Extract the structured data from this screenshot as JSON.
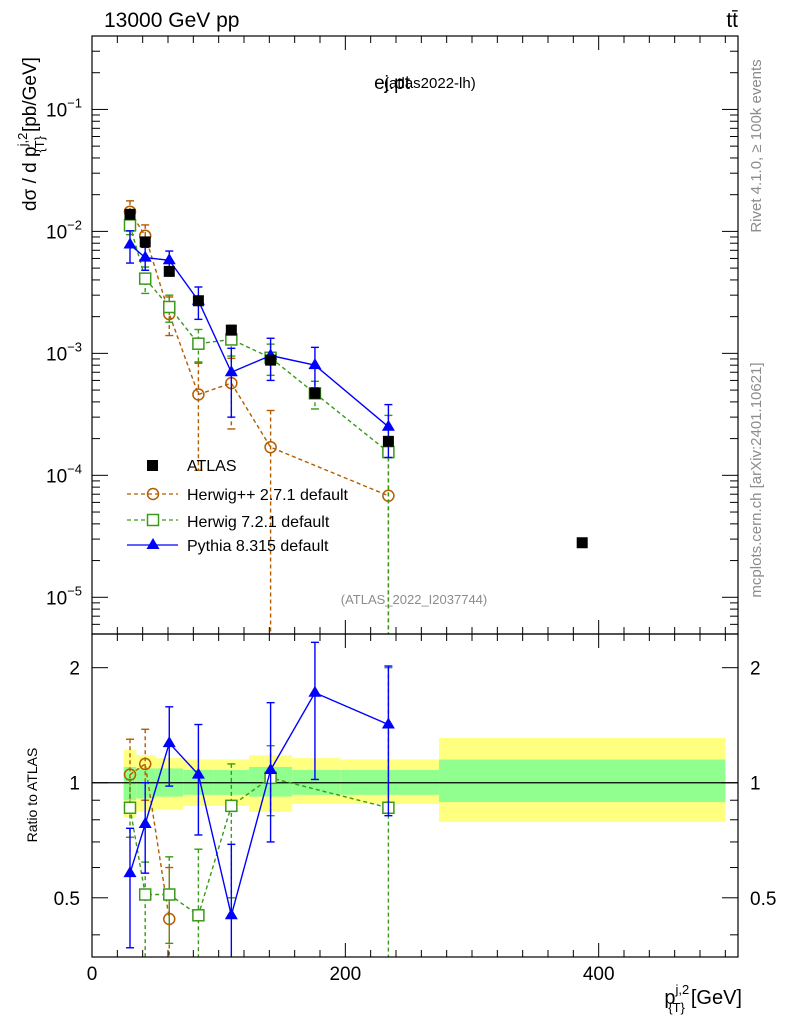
{
  "header": {
    "left": "13000 GeV pp",
    "right": "tt̄"
  },
  "side_labels": {
    "rivet": "Rivet 4.1.0, ≥ 100k events",
    "mcplots": "mcplots.cern.ch [arXiv:2401.10621]"
  },
  "chart_data": {
    "type": "scatter",
    "title": "ej.pt",
    "subtitle": "(atlas2022-lh)",
    "watermark": "(ATLAS_2022_I2037744)",
    "xlabel_main": "p",
    "xlabel_super": "j,2",
    "xlabel_sub": "{T}",
    "xlabel_unit": "[GeV]",
    "ylabel_main": "dσ / d p",
    "ylabel_super": "j,2",
    "ylabel_sub": "{T}",
    "ylabel_unit": "[pb/GeV]",
    "xlim": [
      0,
      510
    ],
    "ylim": [
      5e-06,
      0.4
    ],
    "yscale": "log",
    "x_ticks": [
      0,
      200,
      400
    ],
    "x_tick_labels": [
      "0",
      "200",
      "400"
    ],
    "y_ticks": [
      1e-05,
      0.0001,
      0.001,
      0.01,
      0.1
    ],
    "y_tick_labels": [
      {
        "base": "10",
        "exp": "−5"
      },
      {
        "base": "10",
        "exp": "−4"
      },
      {
        "base": "10",
        "exp": "−3"
      },
      {
        "base": "10",
        "exp": "−2"
      },
      {
        "base": "10",
        "exp": "−1"
      }
    ],
    "series": [
      {
        "name": "ATLAS",
        "marker": "square-filled",
        "color": "#000000",
        "x": [
          30,
          42,
          61,
          84,
          110,
          141,
          176,
          234,
          387
        ],
        "y": [
          0.0138,
          0.0082,
          0.0047,
          0.0027,
          0.00155,
          0.00088,
          0.00047,
          0.00019,
          2.8e-05
        ]
      },
      {
        "name": "Herwig++ 2.7.1 default",
        "marker": "circle-open",
        "color": "#b35c00",
        "line": "dashed",
        "x": [
          30,
          42,
          61,
          84,
          110,
          141,
          234
        ],
        "y": [
          0.0145,
          0.0092,
          0.0021,
          0.00046,
          0.00057,
          0.00017,
          6.8e-05
        ],
        "err_lo": [
          0.0118,
          0.0074,
          0.0014,
          0.00011,
          0.00024,
          1e-06,
          1e-06
        ],
        "err_hi": [
          0.0178,
          0.0113,
          0.0029,
          0.00083,
          0.00091,
          0.00034,
          0.00016
        ]
      },
      {
        "name": "Herwig 7.2.1 default",
        "marker": "square-open",
        "color": "#3a9a1a",
        "line": "dashed",
        "x": [
          30,
          42,
          61,
          84,
          110,
          141,
          176,
          234
        ],
        "y": [
          0.0112,
          0.0041,
          0.0024,
          0.0012,
          0.0013,
          0.00092,
          0.00047,
          0.000155
        ],
        "err_lo": [
          0.0094,
          0.0031,
          0.0018,
          0.00085,
          0.00095,
          0.00066,
          0.00035,
          1e-06
        ],
        "err_hi": [
          0.0132,
          0.0051,
          0.003,
          0.00157,
          0.0017,
          0.00119,
          0.00059,
          0.00031
        ]
      },
      {
        "name": "Pythia 8.315 default",
        "marker": "triangle-filled",
        "color": "#0000ff",
        "line": "solid",
        "x": [
          30,
          42,
          61,
          84,
          110,
          141,
          176,
          234
        ],
        "y": [
          0.0078,
          0.0061,
          0.0058,
          0.0027,
          0.0007,
          0.00096,
          0.0008,
          0.00025
        ],
        "err_lo": [
          0.0055,
          0.0048,
          0.0047,
          0.0019,
          0.0003,
          0.0006,
          0.00052,
          0.00014
        ],
        "err_hi": [
          0.0101,
          0.0074,
          0.0069,
          0.0035,
          0.0011,
          0.00133,
          0.00112,
          0.00038
        ]
      }
    ],
    "ratio": {
      "ylabel": "Ratio to ATLAS",
      "ylim": [
        0.35,
        2.45
      ],
      "yscale": "log",
      "y_ticks": [
        0.5,
        1,
        2
      ],
      "y_tick_labels": [
        "0.5",
        "1",
        "2"
      ],
      "bands": [
        {
          "x0": 25,
          "x1": 35,
          "y1": [
            0.9,
            1.1
          ],
          "y2": [
            0.81,
            1.22
          ]
        },
        {
          "x0": 35,
          "x1": 50,
          "y1": [
            0.91,
            1.09
          ],
          "y2": [
            0.84,
            1.18
          ]
        },
        {
          "x0": 50,
          "x1": 72,
          "y1": [
            0.92,
            1.09
          ],
          "y2": [
            0.85,
            1.16
          ]
        },
        {
          "x0": 72,
          "x1": 96,
          "y1": [
            0.93,
            1.08
          ],
          "y2": [
            0.87,
            1.15
          ]
        },
        {
          "x0": 96,
          "x1": 124,
          "y1": [
            0.93,
            1.08
          ],
          "y2": [
            0.87,
            1.15
          ]
        },
        {
          "x0": 124,
          "x1": 158,
          "y1": [
            0.92,
            1.1
          ],
          "y2": [
            0.84,
            1.18
          ]
        },
        {
          "x0": 158,
          "x1": 196,
          "y1": [
            0.93,
            1.08
          ],
          "y2": [
            0.88,
            1.16
          ]
        },
        {
          "x0": 196,
          "x1": 274,
          "y1": [
            0.93,
            1.08
          ],
          "y2": [
            0.88,
            1.15
          ]
        },
        {
          "x0": 274,
          "x1": 500,
          "y1": [
            0.89,
            1.15
          ],
          "y2": [
            0.79,
            1.31
          ]
        }
      ],
      "series": [
        {
          "name": "Herwig++ 2.7.1 default",
          "marker": "circle-open",
          "color": "#b35c00",
          "line": "dashed",
          "x": [
            30,
            42,
            61
          ],
          "y": [
            1.05,
            1.12,
            0.44
          ],
          "err_lo": [
            0.85,
            0.9,
            0.3
          ],
          "err_hi": [
            1.3,
            1.38,
            0.6
          ]
        },
        {
          "name": "Herwig 7.2.1 default",
          "marker": "square-open",
          "color": "#3a9a1a",
          "line": "dashed",
          "x": [
            30,
            42,
            61,
            84,
            110,
            141,
            234
          ],
          "y": [
            0.86,
            0.51,
            0.51,
            0.45,
            0.87,
            1.03,
            0.86
          ],
          "err_lo": [
            0.72,
            0.3,
            0.38,
            0.3,
            0.5,
            0.82,
            0.2
          ],
          "err_hi": [
            1.02,
            0.62,
            0.64,
            0.67,
            1.12,
            1.25,
            2.0
          ]
        },
        {
          "name": "Pythia 8.315 default",
          "marker": "triangle-filled",
          "color": "#0000ff",
          "line": "solid",
          "x": [
            30,
            42,
            61,
            84,
            110,
            141,
            176,
            234
          ],
          "y": [
            0.58,
            0.78,
            1.27,
            1.05,
            0.45,
            1.08,
            1.72,
            1.42
          ],
          "err_lo": [
            0.37,
            0.58,
            0.98,
            0.73,
            0.22,
            0.7,
            1.02,
            0.82
          ],
          "err_hi": [
            0.76,
            1.0,
            1.58,
            1.42,
            0.69,
            1.62,
            2.33,
            2.02
          ]
        }
      ]
    }
  }
}
